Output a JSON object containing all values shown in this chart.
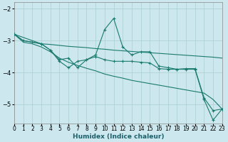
{
  "xlabel": "Humidex (Indice chaleur)",
  "background_color": "#cce8ee",
  "grid_color": "#aacfcf",
  "line_color": "#1a7a6e",
  "xlim": [
    0,
    23
  ],
  "ylim": [
    -5.6,
    -1.8
  ],
  "yticks": [
    -5,
    -4,
    -3,
    -2
  ],
  "xticks": [
    0,
    1,
    2,
    3,
    4,
    5,
    6,
    7,
    8,
    9,
    10,
    11,
    12,
    13,
    14,
    15,
    16,
    17,
    18,
    19,
    20,
    21,
    22,
    23
  ],
  "line_upper_x": [
    0,
    1,
    2,
    3,
    4,
    5,
    6,
    7,
    8,
    9,
    10,
    11,
    12,
    13,
    14,
    15,
    16,
    17,
    18,
    19,
    20,
    21,
    22,
    23
  ],
  "line_upper_y": [
    -2.8,
    -3.0,
    -3.05,
    -3.1,
    -3.12,
    -3.15,
    -3.18,
    -3.2,
    -3.22,
    -3.25,
    -3.27,
    -3.3,
    -3.32,
    -3.34,
    -3.36,
    -3.38,
    -3.4,
    -3.42,
    -3.44,
    -3.46,
    -3.48,
    -3.5,
    -3.52,
    -3.55
  ],
  "line_lower_x": [
    0,
    1,
    2,
    3,
    4,
    5,
    6,
    7,
    8,
    9,
    10,
    11,
    12,
    13,
    14,
    15,
    16,
    17,
    18,
    19,
    20,
    21,
    22,
    23
  ],
  "line_lower_y": [
    -2.8,
    -3.05,
    -3.1,
    -3.2,
    -3.35,
    -3.55,
    -3.68,
    -3.78,
    -3.87,
    -3.95,
    -4.05,
    -4.12,
    -4.18,
    -4.25,
    -4.3,
    -4.35,
    -4.4,
    -4.45,
    -4.5,
    -4.55,
    -4.6,
    -4.65,
    -4.85,
    -5.15
  ],
  "line_jagged_x": [
    0,
    1,
    2,
    3,
    4,
    5,
    6,
    7,
    8,
    9,
    10,
    11,
    12,
    13,
    14,
    15,
    16,
    17,
    18,
    19,
    20,
    21,
    22,
    23
  ],
  "line_jagged_y": [
    -2.8,
    -3.0,
    -3.05,
    -3.1,
    -3.3,
    -3.65,
    -3.85,
    -3.65,
    -3.6,
    -3.45,
    -2.65,
    -2.3,
    -3.2,
    -3.45,
    -3.35,
    -3.35,
    -3.8,
    -3.85,
    -3.9,
    -3.88,
    -3.88,
    -4.8,
    -5.2,
    -5.15
  ],
  "line_mid_x": [
    0,
    3,
    4,
    5,
    6,
    7,
    8,
    9,
    10,
    11,
    12,
    13,
    14,
    15,
    16,
    17,
    18,
    19,
    20,
    21,
    22,
    23
  ],
  "line_mid_y": [
    -2.8,
    -3.1,
    -3.3,
    -3.6,
    -3.55,
    -3.85,
    -3.6,
    -3.5,
    -3.6,
    -3.65,
    -3.65,
    -3.65,
    -3.68,
    -3.7,
    -3.88,
    -3.9,
    -3.9,
    -3.9,
    -3.9,
    -4.85,
    -5.5,
    -5.15
  ]
}
